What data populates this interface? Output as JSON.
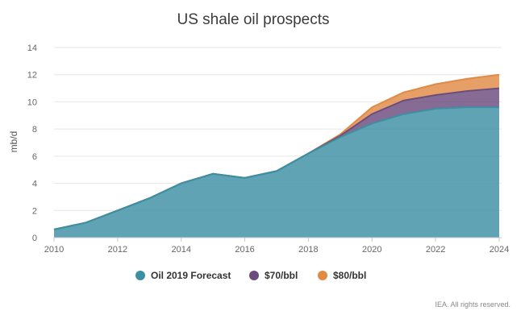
{
  "chart_data": {
    "type": "area",
    "title": "US shale oil prospects",
    "ylabel": "mb/d",
    "xlabel": "",
    "x": [
      2010,
      2011,
      2012,
      2013,
      2014,
      2015,
      2016,
      2017,
      2018,
      2019,
      2020,
      2021,
      2022,
      2023,
      2024
    ],
    "x_ticks": [
      2010,
      2012,
      2014,
      2016,
      2018,
      2020,
      2022,
      2024
    ],
    "y_ticks": [
      0,
      2,
      4,
      6,
      8,
      10,
      12,
      14
    ],
    "xlim": [
      2010,
      2024.2
    ],
    "ylim": [
      0,
      14
    ],
    "stacked": true,
    "grid": true,
    "legend_position": "bottom",
    "series": [
      {
        "name": "Oil 2019 Forecast",
        "color": "#3d8fa3",
        "values": [
          0.6,
          1.1,
          2.0,
          2.9,
          4.0,
          4.7,
          4.4,
          4.9,
          6.2,
          7.4,
          8.4,
          9.1,
          9.5,
          9.6,
          9.6
        ]
      },
      {
        "name": "$70/bbl",
        "color": "#6b4c7d",
        "values": [
          0,
          0,
          0,
          0,
          0,
          0,
          0,
          0,
          0,
          0.1,
          0.7,
          1.0,
          1.0,
          1.2,
          1.4
        ]
      },
      {
        "name": "$80/bbl",
        "color": "#e08a44",
        "values": [
          0,
          0,
          0,
          0,
          0,
          0,
          0,
          0,
          0,
          0.1,
          0.5,
          0.6,
          0.8,
          0.9,
          1.0
        ]
      }
    ]
  },
  "credit": "IEA. All rights reserved."
}
